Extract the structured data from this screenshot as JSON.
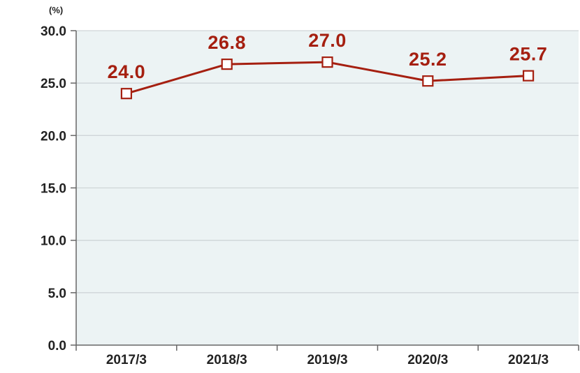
{
  "chart_data": {
    "type": "line",
    "y_unit": "(%)",
    "categories": [
      "2017/3",
      "2018/3",
      "2019/3",
      "2020/3",
      "2021/3"
    ],
    "series": [
      {
        "values": [
          24.0,
          26.8,
          27.0,
          25.2,
          25.7
        ],
        "labels": [
          "24.0",
          "26.8",
          "27.0",
          "25.2",
          "25.7"
        ],
        "marker": "hollow-square"
      }
    ],
    "ylim": [
      0,
      30
    ],
    "y_ticks": [
      "0.0",
      "5.0",
      "10.0",
      "15.0",
      "20.0",
      "25.0",
      "30.0"
    ],
    "y_tick_values": [
      0,
      5,
      10,
      15,
      20,
      25,
      30
    ],
    "grid": "horizontal",
    "colors": {
      "plot_background": "#ecf3f4",
      "series_line": "#a51f10",
      "data_label": "#a51f10",
      "marker_fill": "#ffffff",
      "gridline": "#cfd5d8",
      "axis": "#666666"
    }
  }
}
